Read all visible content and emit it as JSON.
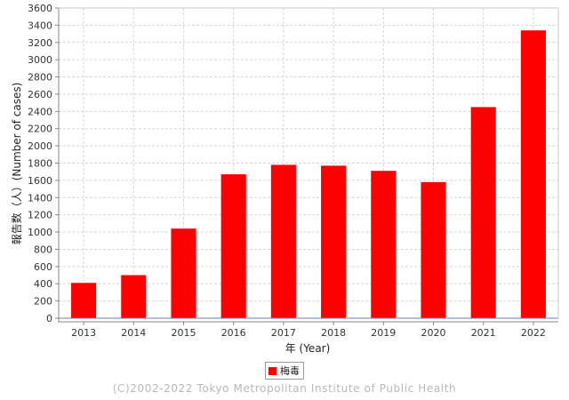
{
  "chart_data": {
    "type": "bar",
    "categories": [
      "2013",
      "2014",
      "2015",
      "2016",
      "2017",
      "2018",
      "2019",
      "2020",
      "2021",
      "2022"
    ],
    "series": [
      {
        "name": "梅毒",
        "values": [
          410,
          500,
          1040,
          1670,
          1780,
          1770,
          1710,
          1580,
          2450,
          3340
        ],
        "color": "#ff0000"
      }
    ],
    "xlabel": "年 (Year)",
    "ylabel": "報告数（人）(Number of cases)",
    "ylim": [
      0,
      3600
    ],
    "yticks": [
      0,
      200,
      400,
      600,
      800,
      1000,
      1200,
      1400,
      1600,
      1800,
      2000,
      2200,
      2400,
      2600,
      2800,
      3000,
      3200,
      3400,
      3600
    ],
    "grid": true,
    "legend_position": "bottom-center"
  },
  "footer": {
    "copyright": "(C)2002-2022 Tokyo Metropolitan Institute of Public Health"
  }
}
